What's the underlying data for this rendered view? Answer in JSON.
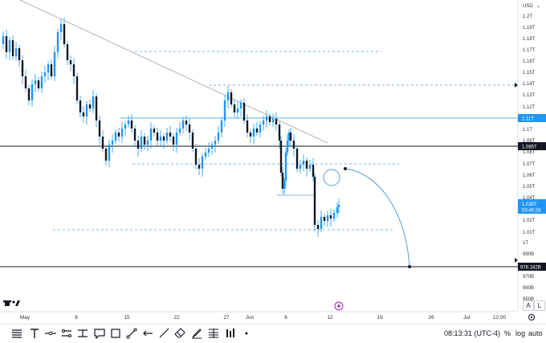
{
  "currency_selector": "USD",
  "price_axis": {
    "ticks": [
      "1.2T",
      "1.19T",
      "1.18T",
      "1.17T",
      "1.16T",
      "1.15T",
      "1.14T",
      "1.13T",
      "1.12T",
      "1.11T",
      "1.1T",
      "1.09T",
      "1.08T",
      "1.07T",
      "1.06T",
      "1.05T",
      "1.04T",
      "1.02T",
      "1.01T",
      "1T",
      "990B",
      "970B",
      "960B",
      "950B"
    ],
    "tags": {
      "level_blue": "1.11T",
      "level_black": "1.085T",
      "current_price": "1.035T",
      "countdown": "03:46:28",
      "bottom_level": "978.182B"
    }
  },
  "time_axis": {
    "labels": [
      "May",
      "8",
      "15",
      "22",
      "27",
      "Jun",
      "6",
      "12",
      "19",
      "26",
      "Jul",
      "12:00"
    ]
  },
  "toolbar": {
    "time": "08:13:31 (UTC-4)",
    "percent": "%",
    "log": "log",
    "auto": "auto"
  },
  "side_buttons": {
    "a": "A",
    "l": "L"
  },
  "colors": {
    "candle": "#131722",
    "wick_blue": "#2196f3",
    "dashed_level": "#5b9bd5",
    "trend_line": "#a0a0a0",
    "projection": "#5b9bd5"
  }
}
